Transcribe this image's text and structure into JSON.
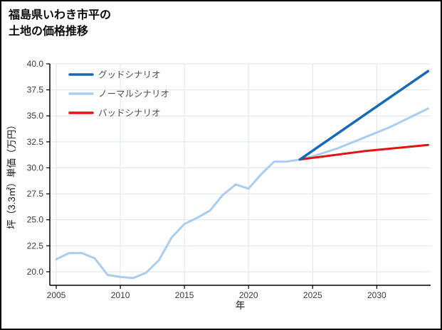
{
  "title": {
    "line1": "福島県いわき市平の",
    "line2": "土地の価格推移"
  },
  "chart_data": {
    "type": "line",
    "title": "福島県いわき市平の土地の価格推移",
    "xlabel": "年",
    "ylabel": "坪（3.3㎡）単価（万円）",
    "xlim": [
      2004.5,
      2034.2
    ],
    "ylim": [
      18.7,
      40.0
    ],
    "xticks": [
      2005,
      2010,
      2015,
      2020,
      2025,
      2030
    ],
    "yticks": [
      20.0,
      22.5,
      25.0,
      27.5,
      30.0,
      32.5,
      35.0,
      37.5,
      40.0
    ],
    "grid": true,
    "legend_position": "upper-left-inside",
    "colors": {
      "grid": "#d9e5f2",
      "axis": "#000000",
      "background": "#ffffff"
    },
    "legend": [
      {
        "label": "グッドシナリオ",
        "color": "#1668b8"
      },
      {
        "label": "ノーマルシナリオ",
        "color": "#a9cdf0"
      },
      {
        "label": "バッドシナリオ",
        "color": "#e21313"
      }
    ],
    "series": [
      {
        "name": "ノーマルシナリオ",
        "color": "#a9cdf0",
        "width": 3,
        "x": [
          2005,
          2006,
          2007,
          2008,
          2009,
          2010,
          2011,
          2012,
          2013,
          2014,
          2015,
          2016,
          2017,
          2018,
          2019,
          2020,
          2021,
          2022,
          2023,
          2024,
          2025,
          2026,
          2027,
          2028,
          2029,
          2030,
          2031,
          2032,
          2033,
          2034
        ],
        "y": [
          21.2,
          21.8,
          21.8,
          21.3,
          19.7,
          19.5,
          19.4,
          19.9,
          21.1,
          23.3,
          24.6,
          25.2,
          25.9,
          27.4,
          28.4,
          28.0,
          29.4,
          30.6,
          30.6,
          30.8,
          31.1,
          31.5,
          31.9,
          32.4,
          32.9,
          33.4,
          33.9,
          34.5,
          35.1,
          35.7
        ]
      },
      {
        "name": "バッドシナリオ",
        "color": "#e21313",
        "width": 3,
        "x": [
          2024,
          2029,
          2034
        ],
        "y": [
          30.8,
          31.6,
          32.2
        ]
      },
      {
        "name": "グッドシナリオ",
        "color": "#1668b8",
        "width": 3.5,
        "x": [
          2024,
          2034
        ],
        "y": [
          30.8,
          39.3
        ]
      }
    ]
  }
}
